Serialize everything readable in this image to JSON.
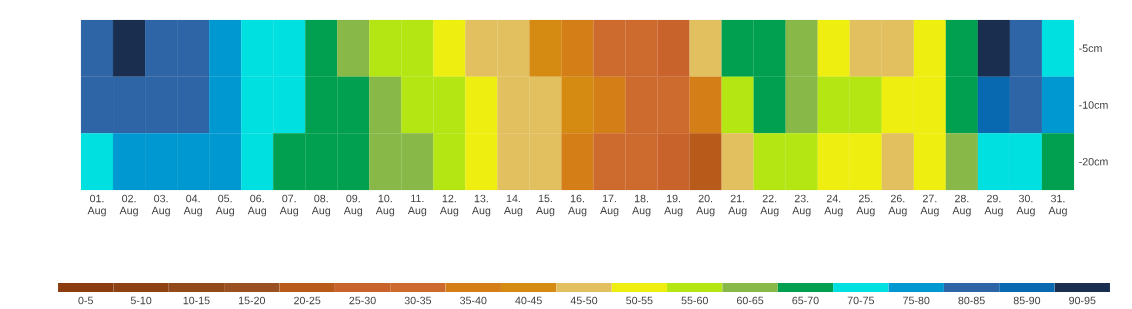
{
  "chart_data": {
    "type": "heatmap",
    "categories": [
      "01. Aug",
      "02. Aug",
      "03. Aug",
      "04. Aug",
      "05. Aug",
      "06. Aug",
      "07. Aug",
      "08. Aug",
      "09. Aug",
      "10. Aug",
      "11. Aug",
      "12. Aug",
      "13. Aug",
      "14. Aug",
      "15. Aug",
      "16. Aug",
      "17. Aug",
      "18. Aug",
      "19. Aug",
      "20. Aug",
      "21. Aug",
      "22. Aug",
      "23. Aug",
      "24. Aug",
      "25. Aug",
      "26. Aug",
      "27. Aug",
      "28. Aug",
      "29. Aug",
      "30. Aug",
      "31. Aug"
    ],
    "y_categories": [
      "-5cm",
      "-10cm",
      "-20cm"
    ],
    "cells": [
      [
        84,
        92,
        82,
        82,
        78,
        74,
        72,
        67,
        63,
        57,
        57,
        52,
        48,
        47,
        42,
        37,
        32,
        33,
        28,
        47,
        67,
        67,
        62,
        52,
        47,
        47,
        52,
        67,
        92,
        82,
        73
      ],
      [
        82,
        84,
        83,
        82,
        78,
        74,
        73,
        67,
        67,
        62,
        58,
        57,
        53,
        48,
        47,
        42,
        38,
        33,
        33,
        38,
        57,
        68,
        62,
        57,
        57,
        53,
        52,
        65,
        88,
        82,
        78
      ],
      [
        72,
        77,
        78,
        78,
        78,
        72,
        68,
        68,
        67,
        62,
        60,
        57,
        53,
        48,
        47,
        38,
        33,
        33,
        25,
        22,
        45,
        57,
        57,
        53,
        52,
        48,
        52,
        60,
        72,
        73,
        67
      ]
    ],
    "clim": [
      0,
      95
    ],
    "cticks": [
      {
        "value": 2.5,
        "label": "0-5"
      },
      {
        "value": 7.5,
        "label": "5-10"
      },
      {
        "value": 12.5,
        "label": "10-15"
      },
      {
        "value": 17.5,
        "label": "15-20"
      },
      {
        "value": 22.5,
        "label": "20-25"
      },
      {
        "value": 27.5,
        "label": "25-30"
      },
      {
        "value": 32.5,
        "label": "30-35"
      },
      {
        "value": 37.5,
        "label": "35-40"
      },
      {
        "value": 42.5,
        "label": "40-45"
      },
      {
        "value": 47.5,
        "label": "45-50"
      },
      {
        "value": 52.5,
        "label": "50-55"
      },
      {
        "value": 57.5,
        "label": "55-60"
      },
      {
        "value": 62.5,
        "label": "60-65"
      },
      {
        "value": 67.5,
        "label": "65-70"
      },
      {
        "value": 72.5,
        "label": "70-75"
      },
      {
        "value": 77.5,
        "label": "75-80"
      },
      {
        "value": 82.5,
        "label": "80-85"
      },
      {
        "value": 87.5,
        "label": "85-90"
      },
      {
        "value": 92.5,
        "label": "90-95"
      }
    ],
    "colors": [
      "#8b3d10",
      "#8e4214",
      "#934a1a",
      "#9a5020",
      "#b85a1a",
      "#c8632c",
      "#cd6a2e",
      "#d47e18",
      "#d58a12",
      "#e2c060",
      "#eeee10",
      "#b4e614",
      "#88b848",
      "#00a050",
      "#00e0e0",
      "#0098d0",
      "#2e65a6",
      "#0868b0",
      "#1a2e50"
    ]
  }
}
